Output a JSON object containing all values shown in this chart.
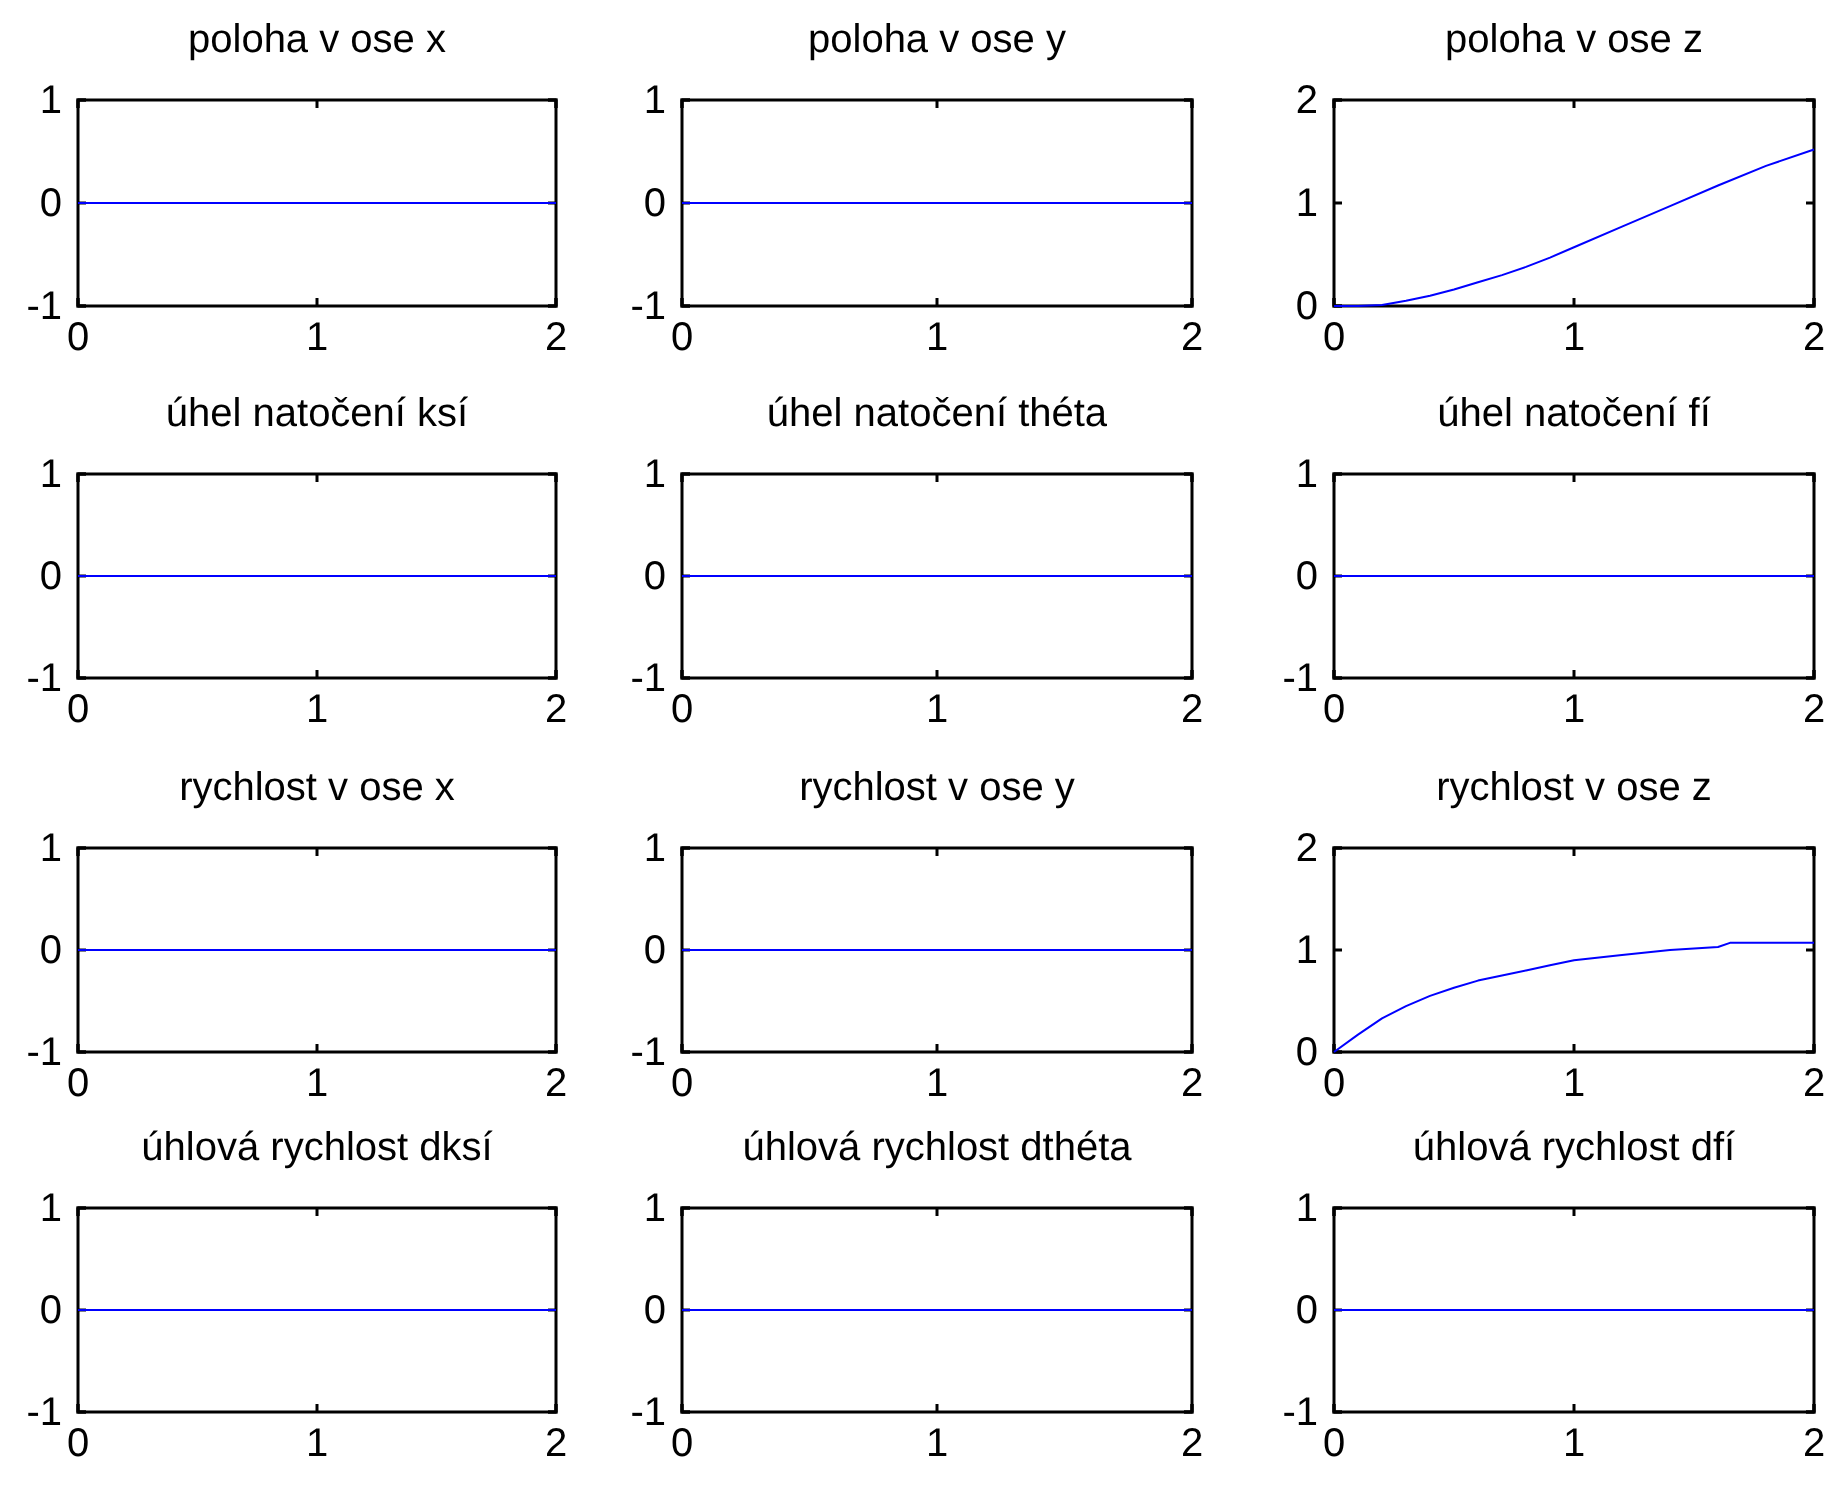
{
  "chart_data": [
    {
      "type": "line",
      "title": "poloha v ose x",
      "x": [
        0,
        2
      ],
      "series": [
        {
          "color": "#0000ff",
          "values": [
            0,
            0
          ]
        }
      ],
      "xlim": [
        0,
        2
      ],
      "xticks": [
        0,
        1,
        2
      ],
      "ylim": [
        -1,
        1
      ],
      "yticks": [
        -1,
        0,
        1
      ]
    },
    {
      "type": "line",
      "title": "poloha v ose y",
      "x": [
        0,
        2
      ],
      "series": [
        {
          "color": "#0000ff",
          "values": [
            0,
            0
          ]
        }
      ],
      "xlim": [
        0,
        2
      ],
      "xticks": [
        0,
        1,
        2
      ],
      "ylim": [
        -1,
        1
      ],
      "yticks": [
        -1,
        0,
        1
      ]
    },
    {
      "type": "line",
      "title": "poloha v ose z",
      "x": [
        0,
        0.1,
        0.2,
        0.3,
        0.4,
        0.5,
        0.6,
        0.7,
        0.8,
        0.9,
        1,
        1.2,
        1.4,
        1.6,
        1.8,
        2
      ],
      "series": [
        {
          "color": "#0000ff",
          "values": [
            0,
            0,
            0.01,
            0.05,
            0.1,
            0.16,
            0.23,
            0.3,
            0.38,
            0.47,
            0.57,
            0.77,
            0.97,
            1.17,
            1.36,
            1.52
          ]
        }
      ],
      "xlim": [
        0,
        2
      ],
      "xticks": [
        0,
        1,
        2
      ],
      "ylim": [
        0,
        2
      ],
      "yticks": [
        0,
        1,
        2
      ]
    },
    {
      "type": "line",
      "title": "úhel natočení ksí",
      "x": [
        0,
        2
      ],
      "series": [
        {
          "color": "#0000ff",
          "values": [
            0,
            0
          ]
        }
      ],
      "xlim": [
        0,
        2
      ],
      "xticks": [
        0,
        1,
        2
      ],
      "ylim": [
        -1,
        1
      ],
      "yticks": [
        -1,
        0,
        1
      ]
    },
    {
      "type": "line",
      "title": "úhel natočení théta",
      "x": [
        0,
        2
      ],
      "series": [
        {
          "color": "#0000ff",
          "values": [
            0,
            0
          ]
        }
      ],
      "xlim": [
        0,
        2
      ],
      "xticks": [
        0,
        1,
        2
      ],
      "ylim": [
        -1,
        1
      ],
      "yticks": [
        -1,
        0,
        1
      ]
    },
    {
      "type": "line",
      "title": "úhel natočení fí",
      "x": [
        0,
        2
      ],
      "series": [
        {
          "color": "#0000ff",
          "values": [
            0,
            0
          ]
        }
      ],
      "xlim": [
        0,
        2
      ],
      "xticks": [
        0,
        1,
        2
      ],
      "ylim": [
        -1,
        1
      ],
      "yticks": [
        -1,
        0,
        1
      ]
    },
    {
      "type": "line",
      "title": "rychlost v ose x",
      "x": [
        0,
        2
      ],
      "series": [
        {
          "color": "#0000ff",
          "values": [
            0,
            0
          ]
        }
      ],
      "xlim": [
        0,
        2
      ],
      "xticks": [
        0,
        1,
        2
      ],
      "ylim": [
        -1,
        1
      ],
      "yticks": [
        -1,
        0,
        1
      ]
    },
    {
      "type": "line",
      "title": "rychlost v ose y",
      "x": [
        0,
        2
      ],
      "series": [
        {
          "color": "#0000ff",
          "values": [
            0,
            0
          ]
        }
      ],
      "xlim": [
        0,
        2
      ],
      "xticks": [
        0,
        1,
        2
      ],
      "ylim": [
        -1,
        1
      ],
      "yticks": [
        -1,
        0,
        1
      ]
    },
    {
      "type": "line",
      "title": "rychlost v ose z",
      "x": [
        0,
        0.1,
        0.2,
        0.3,
        0.4,
        0.5,
        0.6,
        0.7,
        0.8,
        0.9,
        1,
        1.2,
        1.4,
        1.6,
        1.65,
        2
      ],
      "series": [
        {
          "color": "#0000ff",
          "values": [
            0,
            0.17,
            0.33,
            0.45,
            0.55,
            0.63,
            0.7,
            0.75,
            0.8,
            0.85,
            0.9,
            0.95,
            1,
            1.03,
            1.07,
            1.07
          ]
        }
      ],
      "xlim": [
        0,
        2
      ],
      "xticks": [
        0,
        1,
        2
      ],
      "ylim": [
        0,
        2
      ],
      "yticks": [
        0,
        1,
        2
      ]
    },
    {
      "type": "line",
      "title": "úhlová rychlost dksí",
      "x": [
        0,
        2
      ],
      "series": [
        {
          "color": "#0000ff",
          "values": [
            0,
            0
          ]
        }
      ],
      "xlim": [
        0,
        2
      ],
      "xticks": [
        0,
        1,
        2
      ],
      "ylim": [
        -1,
        1
      ],
      "yticks": [
        -1,
        0,
        1
      ]
    },
    {
      "type": "line",
      "title": "úhlová rychlost dthéta",
      "x": [
        0,
        2
      ],
      "series": [
        {
          "color": "#0000ff",
          "values": [
            0,
            0
          ]
        }
      ],
      "xlim": [
        0,
        2
      ],
      "xticks": [
        0,
        1,
        2
      ],
      "ylim": [
        -1,
        1
      ],
      "yticks": [
        -1,
        0,
        1
      ]
    },
    {
      "type": "line",
      "title": "úhlová rychlost dfí",
      "x": [
        0,
        2
      ],
      "series": [
        {
          "color": "#0000ff",
          "values": [
            0,
            0
          ]
        }
      ],
      "xlim": [
        0,
        2
      ],
      "xticks": [
        0,
        1,
        2
      ],
      "ylim": [
        -1,
        1
      ],
      "yticks": [
        -1,
        0,
        1
      ]
    }
  ]
}
